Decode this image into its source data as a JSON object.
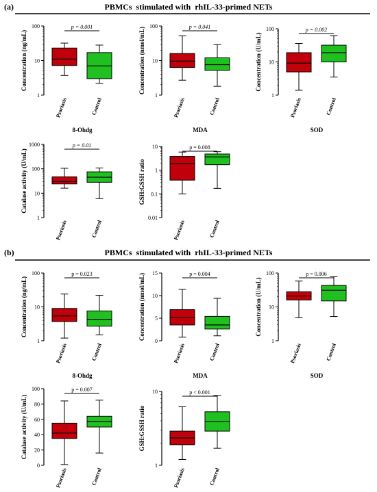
{
  "panels": [
    {
      "letter": "(a)",
      "title": "PBMCs  stimulated with  rhIL-33-primed NETs"
    },
    {
      "letter": "(b)",
      "title": "PBMCs  stimulated with  rhIL-33-primed NETs"
    }
  ],
  "colors": {
    "psoriasis": "#c0000b",
    "control": "#1fc01f",
    "median": "#000000"
  },
  "chart_data": [
    {
      "type": "boxplot",
      "panel": "(a)",
      "ylabel": "Concentration (ng/mL)",
      "xlabel": "8-Ohdg",
      "scale": "log",
      "ylim": [
        1,
        100
      ],
      "ticks": [
        1,
        10,
        100
      ],
      "tick_labels": [
        "1",
        "10",
        "100"
      ],
      "pvalue": "p = 0.001",
      "pvalue_italic": true,
      "categories": [
        "Psoriasis",
        "Control"
      ],
      "series": [
        {
          "name": "Psoriasis",
          "min": 3.7,
          "q1": 7.2,
          "median": 11,
          "q3": 23,
          "max": 32
        },
        {
          "name": "Control",
          "min": 2.2,
          "q1": 3,
          "median": 7,
          "q3": 17,
          "max": 28
        }
      ]
    },
    {
      "type": "boxplot",
      "panel": "(a)",
      "ylabel": "Concentration (nmol/mL)",
      "xlabel": "MDA",
      "scale": "log",
      "ylim": [
        1,
        100
      ],
      "ticks": [
        1,
        10,
        100
      ],
      "tick_labels": [
        "1",
        "10",
        "100"
      ],
      "pvalue": "p = 0.041",
      "pvalue_italic": true,
      "categories": [
        "Psoriasis",
        "Control"
      ],
      "series": [
        {
          "name": "Psoriasis",
          "min": 2.7,
          "q1": 6.3,
          "median": 9.6,
          "q3": 16,
          "max": 52
        },
        {
          "name": "Control",
          "min": 1.8,
          "q1": 5.2,
          "median": 7.6,
          "q3": 12,
          "max": 29
        }
      ]
    },
    {
      "type": "boxplot",
      "panel": "(a)",
      "ylabel": "Concentration (U/mL)",
      "xlabel": "SOD",
      "scale": "log",
      "ylim": [
        1,
        100
      ],
      "ticks": [
        1,
        10,
        100
      ],
      "tick_labels": [
        "1",
        "10",
        "100"
      ],
      "pvalue": "p = 0.002",
      "pvalue_italic": true,
      "categories": [
        "Psoriasis",
        "Control"
      ],
      "series": [
        {
          "name": "Psoriasis",
          "min": 1.4,
          "q1": 5,
          "median": 9.2,
          "q3": 19,
          "max": 36
        },
        {
          "name": "Control",
          "min": 3.5,
          "q1": 10,
          "median": 19,
          "q3": 32,
          "max": 62
        }
      ]
    },
    {
      "type": "boxplot",
      "panel": "(a)",
      "ylabel": "Catalase activity (U/mL)",
      "xlabel": "",
      "scale": "log",
      "ylim": [
        1,
        1000
      ],
      "ticks": [
        1,
        10,
        100,
        1000
      ],
      "tick_labels": [
        "1",
        "10",
        "100",
        "1000"
      ],
      "pvalue": "p = 0.01",
      "pvalue_italic": true,
      "categories": [
        "Psoriasis",
        "Control"
      ],
      "series": [
        {
          "name": "Psoriasis",
          "min": 16,
          "q1": 24,
          "median": 30,
          "q3": 47,
          "max": 105
        },
        {
          "name": "Control",
          "min": 6,
          "q1": 28,
          "median": 45,
          "q3": 75,
          "max": 108
        }
      ]
    },
    {
      "type": "boxplot",
      "panel": "(a)",
      "ylabel": "GSH:GSSH ratio",
      "xlabel": "",
      "scale": "log",
      "ylim": [
        0.01,
        10
      ],
      "ticks": [
        0.01,
        0.1,
        1,
        10
      ],
      "tick_labels": [
        "0.01",
        "0.1",
        "1",
        "10"
      ],
      "pvalue": "p = 0.008",
      "pvalue_italic": false,
      "categories": [
        "Psoriasis",
        "Control"
      ],
      "series": [
        {
          "name": "Psoriasis",
          "min": 0.1,
          "q1": 0.38,
          "median": 1.9,
          "q3": 3.8,
          "max": 5.8
        },
        {
          "name": "Control",
          "min": 0.17,
          "q1": 1.7,
          "median": 3.6,
          "q3": 4.8,
          "max": 6
        }
      ]
    },
    {
      "type": "boxplot",
      "panel": "(b)",
      "ylabel": "Concentration (ng/mL)",
      "xlabel": "8-Ohdg",
      "scale": "log",
      "ylim": [
        1,
        100
      ],
      "ticks": [
        1,
        10,
        100
      ],
      "tick_labels": [
        "1",
        "10",
        "100"
      ],
      "pvalue": "p = 0.023",
      "pvalue_italic": false,
      "categories": [
        "Psoriasis",
        "Control"
      ],
      "series": [
        {
          "name": "Psoriasis",
          "min": 1.2,
          "q1": 3.7,
          "median": 5.4,
          "q3": 9,
          "max": 24
        },
        {
          "name": "Control",
          "min": 1.5,
          "q1": 2.7,
          "median": 4.3,
          "q3": 7.6,
          "max": 22
        }
      ]
    },
    {
      "type": "boxplot",
      "panel": "(b)",
      "ylabel": "Concentration (nmol/mL)",
      "xlabel": "MDA",
      "scale": "linear",
      "ylim": [
        0,
        15
      ],
      "ticks": [
        0,
        5,
        10,
        15
      ],
      "tick_labels": [
        "0",
        "5",
        "10",
        "15"
      ],
      "pvalue": "p = 0.004",
      "pvalue_italic": false,
      "categories": [
        "Psoriasis",
        "Control"
      ],
      "series": [
        {
          "name": "Psoriasis",
          "min": 0.8,
          "q1": 3.5,
          "median": 5.2,
          "q3": 6.9,
          "max": 11.4
        },
        {
          "name": "Control",
          "min": 1.1,
          "q1": 2.6,
          "median": 3.5,
          "q3": 5.4,
          "max": 9.4
        }
      ]
    },
    {
      "type": "boxplot",
      "panel": "(b)",
      "ylabel": "Concentration (U/mL)",
      "xlabel": "SOD",
      "scale": "log",
      "ylim": [
        1,
        100
      ],
      "ticks": [
        1,
        10,
        100
      ],
      "tick_labels": [
        "1",
        "10",
        "100"
      ],
      "pvalue": "p = 0.006",
      "pvalue_italic": false,
      "categories": [
        "Psoriasis",
        "Control"
      ],
      "series": [
        {
          "name": "Psoriasis",
          "min": 4.8,
          "q1": 16,
          "median": 21,
          "q3": 28,
          "max": 58
        },
        {
          "name": "Control",
          "min": 5.2,
          "q1": 15,
          "median": 31,
          "q3": 43,
          "max": 78
        }
      ]
    },
    {
      "type": "boxplot",
      "panel": "(b)",
      "ylabel": "Catalase activity (U/mL)",
      "xlabel": "",
      "scale": "linear",
      "ylim": [
        0,
        100
      ],
      "ticks": [
        0,
        20,
        40,
        60,
        80,
        100
      ],
      "tick_labels": [
        "0",
        "20",
        "40",
        "60",
        "80",
        "100"
      ],
      "pvalue": "p = 0.007",
      "pvalue_italic": false,
      "categories": [
        "Psoriasis",
        "Control"
      ],
      "series": [
        {
          "name": "Psoriasis",
          "min": 1,
          "q1": 35,
          "median": 42,
          "q3": 55,
          "max": 84
        },
        {
          "name": "Control",
          "min": 16,
          "q1": 50,
          "median": 57,
          "q3": 64,
          "max": 85
        }
      ]
    },
    {
      "type": "boxplot",
      "panel": "(b)",
      "ylabel": "GSH:GSSH ratio",
      "xlabel": "",
      "scale": "log",
      "ylim": [
        1,
        10
      ],
      "ticks": [
        1,
        10
      ],
      "tick_labels": [
        "1",
        "10"
      ],
      "pvalue": "p < 0.001",
      "pvalue_italic": false,
      "categories": [
        "Psoriasis",
        "Control"
      ],
      "series": [
        {
          "name": "Psoriasis",
          "min": 1.2,
          "q1": 1.9,
          "median": 2.35,
          "q3": 2.9,
          "max": 6.2
        },
        {
          "name": "Control",
          "min": 1.7,
          "q1": 2.9,
          "median": 3.9,
          "q3": 5.3,
          "max": 8.8
        }
      ]
    }
  ]
}
